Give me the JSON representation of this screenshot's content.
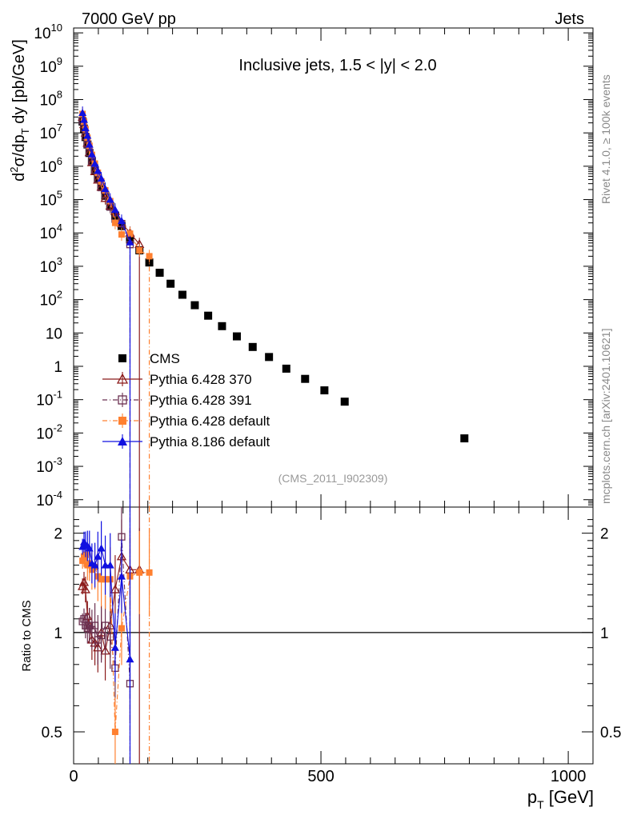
{
  "header": {
    "beam": "7000 GeV pp",
    "category": "Jets"
  },
  "side": {
    "rivet": "Rivet 4.1.0, ≥ 100k events",
    "mcplots": "mcplots.cern.ch [arXiv:2401.10621]"
  },
  "analysis_id": "(CMS_2011_I902309)",
  "colors": {
    "cms": "#000000",
    "p370": "#8b1a1a",
    "p391": "#6b3050",
    "p6def": "#ff8030",
    "p8def": "#1010e0"
  },
  "chart_data": [
    {
      "type": "scatter",
      "panel": "main",
      "title": "Inclusive jets, 1.5 < |y| < 2.0",
      "xlabel": "p_T [GeV]",
      "ylabel": "d²σ/dp_T dy [pb/GeV]",
      "yscale": "log",
      "xlim": [
        0,
        1050
      ],
      "ylim": [
        6e-05,
        14000000000.0
      ],
      "ytick_labels": [
        "10^-4",
        "10^-3",
        "10^-2",
        "10^-1",
        "1",
        "10",
        "10^2",
        "10^3",
        "10^4",
        "10^5",
        "10^6",
        "10^7",
        "10^8",
        "10^9",
        "10^10"
      ],
      "xtick_labels": [
        "0",
        "500",
        "1000"
      ],
      "legend_position": "middle-left",
      "series": [
        {
          "name": "CMS",
          "key": "cms",
          "marker": "square",
          "x": [
            18,
            21,
            24,
            28,
            32,
            37,
            43,
            49,
            56,
            64,
            74,
            84,
            97,
            114,
            133,
            153,
            174,
            196,
            220,
            245,
            272,
            300,
            330,
            362,
            395,
            430,
            468,
            507,
            548,
            790
          ],
          "y": [
            22000000.0,
            13000000.0,
            7500000.0,
            4500000.0,
            2500000.0,
            1400000.0,
            750000.0,
            430000.0,
            240000.0,
            130000.0,
            62000.0,
            33000.0,
            16000.0,
            6400.0,
            3000.0,
            1300.0,
            640,
            300,
            140,
            68,
            33,
            16,
            7.9,
            3.8,
            1.9,
            0.85,
            0.42,
            0.19,
            0.087,
            0.0069
          ]
        },
        {
          "name": "Pythia 6.428 370",
          "key": "p370",
          "marker": "triangle-open",
          "line": "solid",
          "x": [
            18,
            21,
            24,
            28,
            32,
            37,
            43,
            49,
            56,
            64,
            74,
            84,
            97,
            114,
            133
          ],
          "y": [
            30000000.0,
            18000000.0,
            10000000.0,
            5000000.0,
            2600000.0,
            1300000.0,
            700000.0,
            390000.0,
            240000.0,
            110000.0,
            65000.0,
            45000.0,
            20000.0,
            10000.0,
            4600.0
          ]
        },
        {
          "name": "Pythia 6.428 391",
          "key": "p391",
          "marker": "square-open",
          "line": "dash-dot",
          "x": [
            18,
            21,
            24,
            28,
            32,
            37,
            43,
            49,
            56,
            64,
            74,
            84,
            97,
            114
          ],
          "y": [
            23000000.0,
            14000000.0,
            7800000.0,
            4600000.0,
            2600000.0,
            1400000.0,
            780000.0,
            410000.0,
            230000.0,
            140000.0,
            60000.0,
            26000.0,
            19000.0,
            4500.0
          ]
        },
        {
          "name": "Pythia 6.428 default",
          "key": "p6def",
          "marker": "square-filled",
          "line": "dash-dot",
          "x": [
            18,
            21,
            24,
            28,
            32,
            37,
            43,
            49,
            56,
            64,
            74,
            84,
            97,
            114,
            133,
            153
          ],
          "y": [
            37000000.0,
            22000000.0,
            13000000.0,
            7200000.0,
            4100000.0,
            2200000.0,
            1200000.0,
            640000.0,
            350000.0,
            190000.0,
            90000.0,
            20000.0,
            9000.0,
            9500.0,
            3000.0,
            2000.0
          ]
        },
        {
          "name": "Pythia 8.186 default",
          "key": "p8def",
          "marker": "triangle-filled",
          "line": "solid",
          "x": [
            18,
            21,
            24,
            28,
            32,
            37,
            43,
            49,
            56,
            64,
            74,
            84,
            97,
            114
          ],
          "y": [
            40000000.0,
            25000000.0,
            14000000.0,
            8300000.0,
            4500000.0,
            2300000.0,
            1200000.0,
            730000.0,
            430000.0,
            210000.0,
            100000.0,
            50000.0,
            23000.0,
            5300.0
          ]
        }
      ]
    },
    {
      "type": "scatter",
      "panel": "ratio",
      "ylabel": "Ratio to CMS",
      "yscale": "log",
      "ylim": [
        0.4,
        2.4
      ],
      "ytick_labels": [
        "0.5",
        "1",
        "2"
      ],
      "reference_line": 1,
      "series": [
        {
          "name": "Pythia 6.428 370",
          "key": "p370",
          "x": [
            18,
            21,
            24,
            28,
            32,
            37,
            43,
            49,
            56,
            64,
            74,
            84,
            97,
            114,
            133
          ],
          "y": [
            1.38,
            1.42,
            1.35,
            1.12,
            1.05,
            0.95,
            0.93,
            0.9,
            1.0,
            0.88,
            1.05,
            1.35,
            1.7,
            1.55,
            1.55
          ]
        },
        {
          "name": "Pythia 6.428 391",
          "key": "p391",
          "x": [
            18,
            21,
            24,
            28,
            32,
            37,
            43,
            49,
            56,
            64,
            74,
            84,
            97,
            114
          ],
          "y": [
            1.08,
            1.1,
            1.05,
            1.03,
            1.05,
            1.02,
            1.05,
            0.95,
            0.98,
            1.05,
            0.97,
            0.78,
            1.95,
            0.7
          ]
        },
        {
          "name": "Pythia 6.428 default",
          "key": "p6def",
          "x": [
            18,
            21,
            24,
            28,
            32,
            37,
            43,
            49,
            56,
            64,
            74,
            84,
            97,
            114,
            133,
            153
          ],
          "y": [
            1.65,
            1.7,
            1.72,
            1.6,
            1.62,
            1.55,
            1.58,
            1.48,
            1.45,
            1.45,
            1.45,
            0.5,
            1.03,
            1.48,
            1.52,
            1.52
          ]
        },
        {
          "name": "Pythia 8.186 default",
          "key": "p8def",
          "x": [
            18,
            21,
            24,
            28,
            32,
            37,
            43,
            49,
            56,
            64,
            74,
            84,
            97,
            114
          ],
          "y": [
            1.82,
            1.88,
            1.85,
            1.83,
            1.8,
            1.62,
            1.6,
            1.7,
            1.8,
            1.6,
            1.6,
            0.9,
            1.48,
            0.83
          ]
        }
      ]
    }
  ]
}
